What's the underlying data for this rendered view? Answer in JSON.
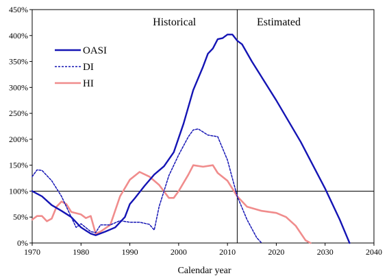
{
  "chart_data": {
    "type": "line",
    "xlabel": "Calendar year",
    "ylabel": "",
    "xlim": [
      1970,
      2040
    ],
    "ylim": [
      0,
      450
    ],
    "x_ticks": [
      1970,
      1980,
      1990,
      2000,
      2010,
      2020,
      2030,
      2040
    ],
    "y_ticks": [
      0,
      50,
      100,
      150,
      200,
      250,
      300,
      350,
      400,
      450
    ],
    "y_tick_labels": [
      "0%",
      "50%",
      "100%",
      "150%",
      "200%",
      "250%",
      "300%",
      "350%",
      "400%",
      "450%"
    ],
    "grid": false,
    "legend_position": "top-left",
    "reference_line_y": 100,
    "divider_x": 2012,
    "annotations": {
      "historical": "Historical",
      "estimated": "Estimated"
    },
    "colors": {
      "OASI": "#1414b4",
      "DI": "#1414b4",
      "HI": "#f08c8c"
    },
    "series": [
      {
        "name": "OASI",
        "style": "solid",
        "points": [
          [
            1970,
            100
          ],
          [
            1972,
            90
          ],
          [
            1974,
            73
          ],
          [
            1976,
            62
          ],
          [
            1978,
            50
          ],
          [
            1980,
            30
          ],
          [
            1982,
            18
          ],
          [
            1983,
            15
          ],
          [
            1985,
            22
          ],
          [
            1987,
            30
          ],
          [
            1989,
            50
          ],
          [
            1990,
            75
          ],
          [
            1991,
            86
          ],
          [
            1993,
            110
          ],
          [
            1995,
            132
          ],
          [
            1997,
            148
          ],
          [
            1999,
            175
          ],
          [
            2001,
            230
          ],
          [
            2003,
            295
          ],
          [
            2005,
            340
          ],
          [
            2006,
            365
          ],
          [
            2007,
            375
          ],
          [
            2008,
            393
          ],
          [
            2009,
            395
          ],
          [
            2010,
            402
          ],
          [
            2011,
            402
          ],
          [
            2012,
            390
          ],
          [
            2013,
            383
          ],
          [
            2015,
            350
          ],
          [
            2020,
            275
          ],
          [
            2025,
            195
          ],
          [
            2030,
            105
          ],
          [
            2033,
            45
          ],
          [
            2035,
            0
          ]
        ]
      },
      {
        "name": "DI",
        "style": "dashed",
        "points": [
          [
            1970,
            128
          ],
          [
            1971,
            141
          ],
          [
            1972,
            140
          ],
          [
            1974,
            120
          ],
          [
            1976,
            90
          ],
          [
            1978,
            50
          ],
          [
            1979,
            30
          ],
          [
            1980,
            37
          ],
          [
            1982,
            22
          ],
          [
            1983,
            20
          ],
          [
            1984,
            35
          ],
          [
            1986,
            35
          ],
          [
            1988,
            43
          ],
          [
            1990,
            40
          ],
          [
            1992,
            40
          ],
          [
            1994,
            36
          ],
          [
            1995,
            25
          ],
          [
            1996,
            70
          ],
          [
            1998,
            130
          ],
          [
            2000,
            170
          ],
          [
            2002,
            205
          ],
          [
            2003,
            218
          ],
          [
            2004,
            220
          ],
          [
            2006,
            208
          ],
          [
            2008,
            205
          ],
          [
            2010,
            160
          ],
          [
            2012,
            90
          ],
          [
            2014,
            45
          ],
          [
            2016,
            10
          ],
          [
            2017,
            0
          ]
        ]
      },
      {
        "name": "HI",
        "style": "solid",
        "points": [
          [
            1970,
            45
          ],
          [
            1971,
            52
          ],
          [
            1972,
            52
          ],
          [
            1973,
            42
          ],
          [
            1974,
            47
          ],
          [
            1975,
            70
          ],
          [
            1976,
            80
          ],
          [
            1977,
            75
          ],
          [
            1978,
            60
          ],
          [
            1980,
            55
          ],
          [
            1981,
            48
          ],
          [
            1982,
            52
          ],
          [
            1983,
            18
          ],
          [
            1984,
            22
          ],
          [
            1986,
            35
          ],
          [
            1988,
            90
          ],
          [
            1990,
            122
          ],
          [
            1992,
            137
          ],
          [
            1994,
            128
          ],
          [
            1996,
            112
          ],
          [
            1998,
            87
          ],
          [
            1999,
            87
          ],
          [
            2000,
            100
          ],
          [
            2002,
            132
          ],
          [
            2003,
            150
          ],
          [
            2005,
            147
          ],
          [
            2007,
            150
          ],
          [
            2008,
            135
          ],
          [
            2010,
            120
          ],
          [
            2012,
            90
          ],
          [
            2014,
            70
          ],
          [
            2017,
            62
          ],
          [
            2020,
            58
          ],
          [
            2022,
            50
          ],
          [
            2024,
            33
          ],
          [
            2026,
            5
          ],
          [
            2027,
            0
          ]
        ]
      }
    ]
  }
}
